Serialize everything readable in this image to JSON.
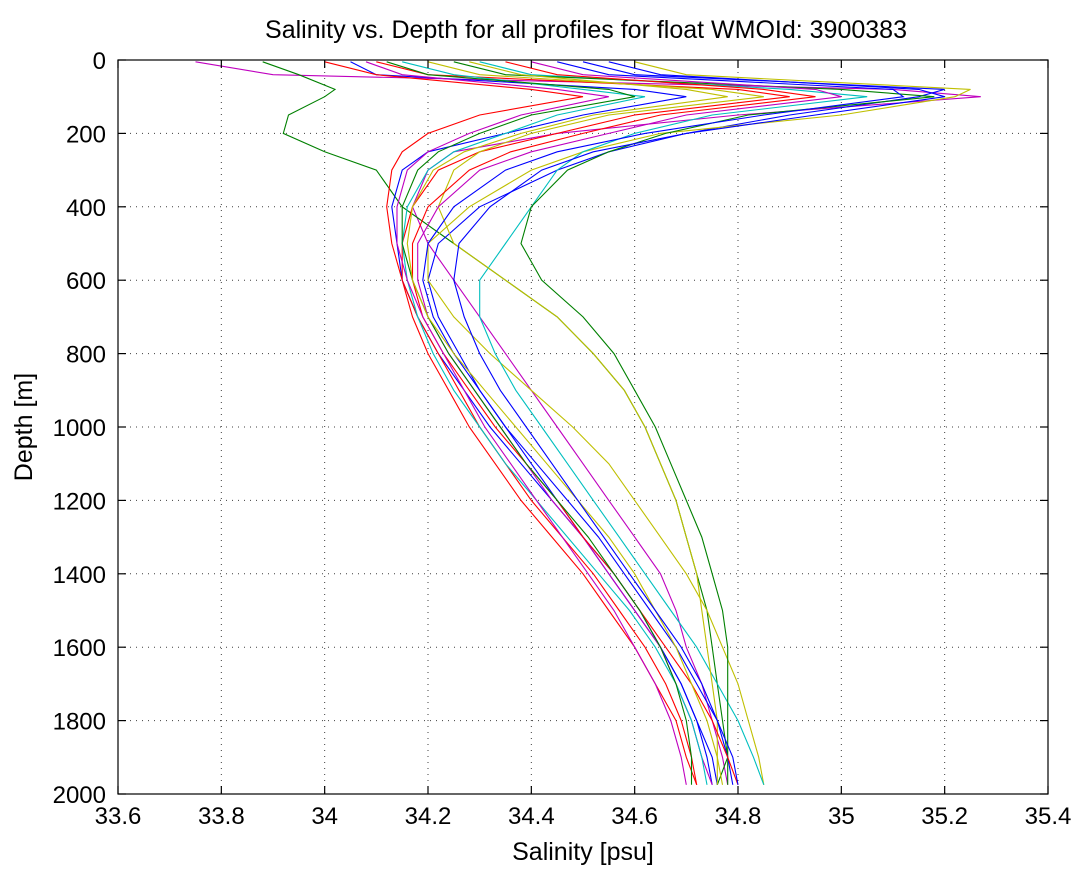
{
  "chart_data": {
    "type": "line",
    "title": "Salinity vs. Depth for all profiles for float WMOId: 3900383",
    "xlabel": "Salinity [psu]",
    "ylabel": "Depth [m]",
    "xlim": [
      33.6,
      35.4
    ],
    "ylim": [
      0,
      2000
    ],
    "y_reversed": true,
    "grid": true,
    "legend": "none",
    "xticks": [
      33.6,
      33.8,
      34,
      34.2,
      34.4,
      34.6,
      34.8,
      35,
      35.2,
      35.4
    ],
    "xtick_labels": [
      "33.6",
      "33.8",
      "34",
      "34.2",
      "34.4",
      "34.6",
      "34.8",
      "35",
      "35.2",
      "35.4"
    ],
    "yticks": [
      0,
      200,
      400,
      600,
      800,
      1000,
      1200,
      1400,
      1600,
      1800,
      2000
    ],
    "ytick_labels": [
      "0",
      "200",
      "400",
      "600",
      "800",
      "1000",
      "1200",
      "1400",
      "1600",
      "1800",
      "2000"
    ],
    "colors": [
      "#0000ff",
      "#008000",
      "#ff0000",
      "#00bfbf",
      "#bf00bf",
      "#bfbf00"
    ],
    "depth_levels": [
      5,
      40,
      80,
      100,
      150,
      200,
      250,
      300,
      400,
      500,
      600,
      700,
      800,
      900,
      1000,
      1100,
      1200,
      1300,
      1400,
      1500,
      1600,
      1700,
      1800,
      1900,
      1975
    ],
    "series": [
      {
        "color": "#bf00bf",
        "salinity": [
          33.75,
          33.9,
          35.1,
          35.27,
          34.8,
          34.45,
          34.25,
          34.2,
          34.17,
          34.2,
          34.25,
          34.3,
          34.35,
          34.4,
          34.45,
          34.5,
          34.55,
          34.6,
          34.65,
          34.68,
          34.7,
          34.73,
          34.75,
          34.77,
          34.78
        ]
      },
      {
        "color": "#008000",
        "salinity": [
          33.88,
          33.95,
          34.02,
          34.0,
          33.93,
          33.92,
          34.0,
          34.1,
          34.15,
          34.25,
          34.35,
          34.45,
          34.52,
          34.58,
          34.62,
          34.65,
          34.68,
          34.7,
          34.72,
          34.74,
          34.75,
          34.76,
          34.77,
          34.78,
          34.78
        ]
      },
      {
        "color": "#0000ff",
        "salinity": [
          34.5,
          34.6,
          35.2,
          35.15,
          34.9,
          34.7,
          34.55,
          34.45,
          34.3,
          34.22,
          34.2,
          34.22,
          34.26,
          34.3,
          34.35,
          34.4,
          34.45,
          34.5,
          34.55,
          34.6,
          34.65,
          34.69,
          34.72,
          34.75,
          34.76
        ]
      },
      {
        "color": "#bfbf00",
        "salinity": [
          34.6,
          34.7,
          35.25,
          35.22,
          35.0,
          34.65,
          34.5,
          34.4,
          34.28,
          34.2,
          34.2,
          34.25,
          34.32,
          34.4,
          34.48,
          34.55,
          34.6,
          34.65,
          34.7,
          34.74,
          34.77,
          34.8,
          34.82,
          34.84,
          34.85
        ]
      },
      {
        "color": "#ff0000",
        "salinity": [
          34.1,
          34.2,
          34.8,
          34.9,
          34.6,
          34.45,
          34.3,
          34.22,
          34.17,
          34.15,
          34.15,
          34.17,
          34.2,
          34.24,
          34.28,
          34.33,
          34.38,
          34.44,
          34.5,
          34.55,
          34.6,
          34.64,
          34.68,
          34.7,
          34.72
        ]
      },
      {
        "color": "#00bfbf",
        "salinity": [
          34.3,
          34.4,
          34.9,
          35.05,
          34.75,
          34.6,
          34.5,
          34.45,
          34.4,
          34.35,
          34.3,
          34.3,
          34.33,
          34.37,
          34.42,
          34.47,
          34.52,
          34.57,
          34.62,
          34.67,
          34.72,
          34.76,
          34.8,
          34.83,
          34.85
        ]
      },
      {
        "color": "#008000",
        "salinity": [
          34.25,
          34.35,
          35.0,
          35.18,
          34.82,
          34.66,
          34.55,
          34.47,
          34.4,
          34.38,
          34.42,
          34.5,
          34.56,
          34.6,
          34.64,
          34.67,
          34.7,
          34.73,
          34.75,
          34.77,
          34.78,
          34.78,
          34.78,
          34.78,
          34.76
        ]
      },
      {
        "color": "#0000ff",
        "salinity": [
          34.05,
          34.1,
          34.6,
          34.7,
          34.5,
          34.35,
          34.2,
          34.15,
          34.13,
          34.14,
          34.15,
          34.18,
          34.22,
          34.27,
          34.32,
          34.38,
          34.44,
          34.5,
          34.56,
          34.61,
          34.65,
          34.69,
          34.72,
          34.74,
          34.75
        ]
      },
      {
        "color": "#ff0000",
        "salinity": [
          34.0,
          34.1,
          34.4,
          34.5,
          34.3,
          34.2,
          34.15,
          34.13,
          34.12,
          34.13,
          34.15,
          34.18,
          34.22,
          34.26,
          34.3,
          34.35,
          34.4,
          34.46,
          34.52,
          34.57,
          34.62,
          34.66,
          34.69,
          34.71,
          34.72
        ]
      },
      {
        "color": "#bfbf00",
        "salinity": [
          34.2,
          34.3,
          34.75,
          34.85,
          34.55,
          34.4,
          34.3,
          34.25,
          34.22,
          34.25,
          34.35,
          34.45,
          34.52,
          34.58,
          34.62,
          34.65,
          34.68,
          34.7,
          34.72,
          34.73,
          34.74,
          34.75,
          34.76,
          34.76,
          34.76
        ]
      },
      {
        "color": "#bf00bf",
        "salinity": [
          34.4,
          34.5,
          34.95,
          35.0,
          34.7,
          34.55,
          34.4,
          34.3,
          34.22,
          34.18,
          34.18,
          34.2,
          34.24,
          34.29,
          34.34,
          34.39,
          34.44,
          34.5,
          34.55,
          34.6,
          34.65,
          34.68,
          34.71,
          34.73,
          34.75
        ]
      },
      {
        "color": "#00bfbf",
        "salinity": [
          34.15,
          34.25,
          34.5,
          34.62,
          34.45,
          34.35,
          34.25,
          34.2,
          34.16,
          34.15,
          34.16,
          34.18,
          34.21,
          34.25,
          34.3,
          34.35,
          34.41,
          34.47,
          34.53,
          34.59,
          34.64,
          34.68,
          34.71,
          34.73,
          34.74
        ]
      },
      {
        "color": "#0000ff",
        "salinity": [
          34.45,
          34.55,
          35.1,
          35.12,
          34.85,
          34.62,
          34.45,
          34.35,
          34.25,
          34.2,
          34.19,
          34.21,
          34.25,
          34.3,
          34.35,
          34.41,
          34.47,
          34.53,
          34.58,
          34.63,
          34.68,
          34.72,
          34.76,
          34.78,
          34.79
        ]
      },
      {
        "color": "#ff0000",
        "salinity": [
          34.35,
          34.45,
          34.85,
          34.95,
          34.65,
          34.5,
          34.36,
          34.28,
          34.2,
          34.17,
          34.17,
          34.19,
          34.23,
          34.28,
          34.33,
          34.39,
          34.45,
          34.5,
          34.56,
          34.61,
          34.66,
          34.71,
          34.75,
          34.78,
          34.8
        ]
      },
      {
        "color": "#008000",
        "salinity": [
          34.12,
          34.2,
          34.55,
          34.6,
          34.4,
          34.3,
          34.22,
          34.18,
          34.15,
          34.15,
          34.17,
          34.2,
          34.24,
          34.29,
          34.34,
          34.39,
          34.45,
          34.51,
          34.56,
          34.61,
          34.65,
          34.68,
          34.7,
          34.71,
          34.71
        ]
      },
      {
        "color": "#bfbf00",
        "salinity": [
          34.28,
          34.38,
          34.7,
          34.78,
          34.52,
          34.38,
          34.27,
          34.21,
          34.17,
          34.16,
          34.17,
          34.2,
          34.25,
          34.31,
          34.37,
          34.43,
          34.49,
          34.55,
          34.6,
          34.64,
          34.68,
          34.71,
          34.74,
          34.76,
          34.77
        ]
      },
      {
        "color": "#bf00bf",
        "salinity": [
          34.08,
          34.15,
          34.45,
          34.55,
          34.38,
          34.28,
          34.2,
          34.16,
          34.14,
          34.14,
          34.16,
          34.19,
          34.23,
          34.27,
          34.31,
          34.36,
          34.41,
          34.46,
          34.51,
          34.56,
          34.6,
          34.64,
          34.67,
          34.69,
          34.7
        ]
      },
      {
        "color": "#0000ff",
        "salinity": [
          34.55,
          34.65,
          35.15,
          35.2,
          34.95,
          34.7,
          34.52,
          34.42,
          34.32,
          34.26,
          34.25,
          34.27,
          34.3,
          34.34,
          34.39,
          34.44,
          34.49,
          34.54,
          34.59,
          34.64,
          34.69,
          34.73,
          34.76,
          34.79,
          34.8
        ]
      }
    ]
  }
}
